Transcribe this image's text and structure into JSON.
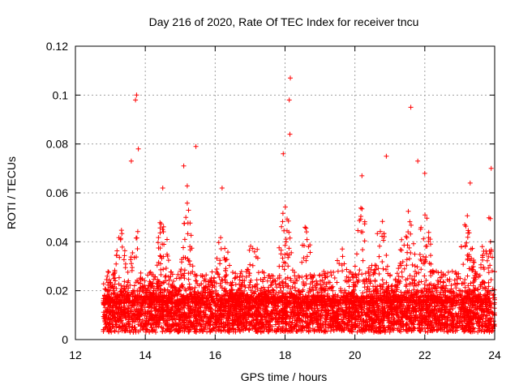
{
  "chart_data": {
    "type": "scatter",
    "title": "Day 216 of 2020, Rate Of TEC Index for receiver tncu",
    "xlabel": "GPS time / hours",
    "ylabel": "ROTI / TECUs",
    "xlim": [
      12,
      24
    ],
    "ylim": [
      0,
      0.12
    ],
    "xticks": [
      "12",
      "14",
      "16",
      "18",
      "20",
      "22",
      "24"
    ],
    "yticks": [
      "0",
      "0.02",
      "0.04",
      "0.06",
      "0.08",
      "0.1",
      "0.12"
    ],
    "grid": true,
    "marker": "+",
    "color": "#ff0000",
    "series": [
      {
        "name": "ROTI",
        "x_range": [
          12.8,
          24.0
        ],
        "baseline_range": [
          0.003,
          0.018
        ],
        "notable_points": [
          {
            "x": 13.72,
            "y": 0.098
          },
          {
            "x": 13.75,
            "y": 0.1
          },
          {
            "x": 13.8,
            "y": 0.078
          },
          {
            "x": 13.6,
            "y": 0.073
          },
          {
            "x": 15.45,
            "y": 0.079
          },
          {
            "x": 18.15,
            "y": 0.107
          },
          {
            "x": 18.12,
            "y": 0.098
          },
          {
            "x": 18.14,
            "y": 0.084
          },
          {
            "x": 17.95,
            "y": 0.076
          },
          {
            "x": 21.6,
            "y": 0.095
          },
          {
            "x": 20.9,
            "y": 0.075
          },
          {
            "x": 21.8,
            "y": 0.073
          },
          {
            "x": 23.9,
            "y": 0.07
          },
          {
            "x": 15.1,
            "y": 0.071
          },
          {
            "x": 16.2,
            "y": 0.062
          },
          {
            "x": 14.5,
            "y": 0.062
          },
          {
            "x": 23.3,
            "y": 0.064
          },
          {
            "x": 20.2,
            "y": 0.067
          },
          {
            "x": 22.0,
            "y": 0.068
          }
        ]
      }
    ]
  }
}
